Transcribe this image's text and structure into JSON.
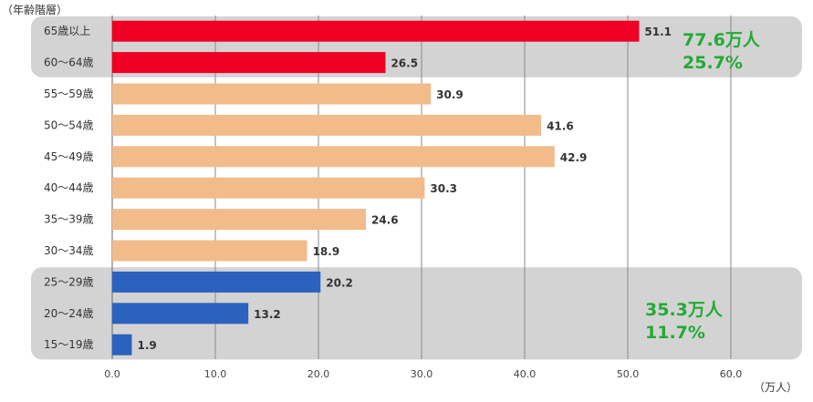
{
  "chart_data": {
    "type": "bar",
    "orientation": "horizontal",
    "y_axis_label": "（年齢階層）",
    "x_unit_label": "（万人）",
    "categories": [
      "65歳以上",
      "60～64歳",
      "55～59歳",
      "50～54歳",
      "45～49歳",
      "40～44歳",
      "35～39歳",
      "30～34歳",
      "25～29歳",
      "20～24歳",
      "15～19歳"
    ],
    "values": [
      51.1,
      26.5,
      30.9,
      41.6,
      42.9,
      30.3,
      24.6,
      18.9,
      20.2,
      13.2,
      1.9
    ],
    "value_labels": [
      "51.1",
      "26.5",
      "30.9",
      "41.6",
      "42.9",
      "30.3",
      "24.6",
      "18.9",
      "20.2",
      "13.2",
      "1.9"
    ],
    "bar_colors": [
      "#f00022",
      "#f00022",
      "#f2bb8a",
      "#f2bb8a",
      "#f2bb8a",
      "#f2bb8a",
      "#f2bb8a",
      "#f2bb8a",
      "#2b62bd",
      "#2b62bd",
      "#2b62bd"
    ],
    "xlim": [
      0,
      60
    ],
    "x_ticks": [
      0,
      10,
      20,
      30,
      40,
      50,
      60
    ],
    "x_tick_labels": [
      "0.0",
      "10.0",
      "20.0",
      "30.0",
      "40.0",
      "50.0",
      "60.0"
    ],
    "grid": "vertical",
    "highlight_groups": [
      {
        "categories": [
          "65歳以上",
          "60～64歳"
        ],
        "total": "77.6万人",
        "share": "25.7%",
        "text_color": "#22aa33",
        "background": "#d3d3d3"
      },
      {
        "categories": [
          "25～29歳",
          "20～24歳",
          "15～19歳"
        ],
        "total": "35.3万人",
        "share": "11.7%",
        "text_color": "#22aa33",
        "background": "#d3d3d3"
      }
    ]
  }
}
